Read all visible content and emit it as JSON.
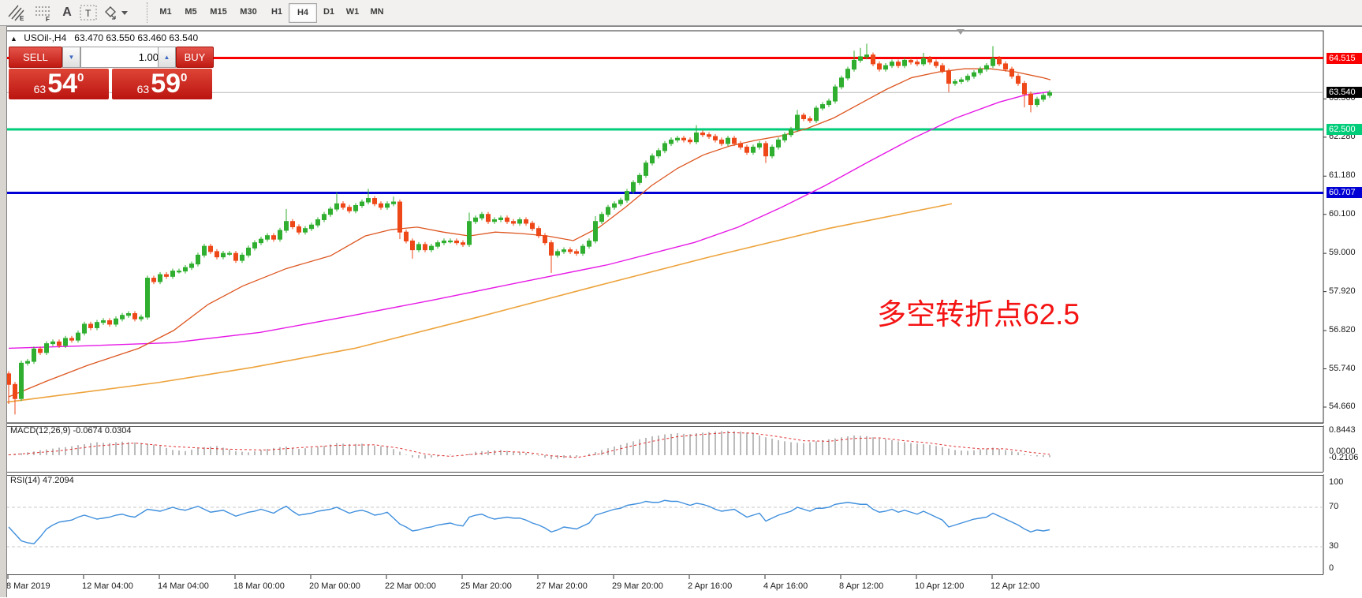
{
  "toolbar": {
    "icons": [
      {
        "name": "equidistant-channel-icon",
        "glyph": "E"
      },
      {
        "name": "fibonacci-icon",
        "glyph": "F"
      },
      {
        "name": "text-a-icon",
        "glyph": "A"
      },
      {
        "name": "text-label-icon",
        "glyph": "T"
      },
      {
        "name": "arrows-icon",
        "glyph": "◆"
      }
    ],
    "timeframes": [
      {
        "label": "M1",
        "active": false
      },
      {
        "label": "M5",
        "active": false
      },
      {
        "label": "M15",
        "active": false
      },
      {
        "label": "M30",
        "active": false
      },
      {
        "label": "H1",
        "active": false
      },
      {
        "label": "H4",
        "active": true
      },
      {
        "label": "D1",
        "active": false
      },
      {
        "label": "W1",
        "active": false
      },
      {
        "label": "MN",
        "active": false
      }
    ]
  },
  "header": {
    "symbol": "USOil-,H4",
    "ohlc": "63.470 63.550 63.460 63.540"
  },
  "one_click": {
    "sell_label": "SELL",
    "buy_label": "BUY",
    "volume": "1.00",
    "sell_price_big": "63",
    "sell_price_main": "54",
    "sell_price_sup": "0",
    "buy_price_big": "63",
    "buy_price_main": "59",
    "buy_price_sup": "0"
  },
  "annotation": {
    "text": "多空转折点62.5",
    "color": "#f41414"
  },
  "price_axis": {
    "ticks": [
      "63.360",
      "62.280",
      "61.180",
      "60.100",
      "59.000",
      "57.920",
      "56.820",
      "55.740",
      "54.660"
    ],
    "badges": [
      {
        "label": "64.515",
        "price": 64.515,
        "bg": "#fa0000"
      },
      {
        "label": "63.540",
        "price": 63.54,
        "bg": "#000000"
      },
      {
        "label": "62.500",
        "price": 62.5,
        "bg": "#00cd7a"
      },
      {
        "label": "60.707",
        "price": 60.707,
        "bg": "#0000d4"
      }
    ]
  },
  "macd_panel": {
    "label": "MACD(12,26,9) -0.0674 0.0304",
    "axis_top": "0.8443",
    "axis_zero": "0.0000",
    "axis_bottom": "-0.2106"
  },
  "rsi_panel": {
    "label": "RSI(14) 47.2094",
    "axis": [
      "100",
      "70",
      "30",
      "0"
    ]
  },
  "time_axis": {
    "labels": [
      "8 Mar 2019",
      "12 Mar 04:00",
      "14 Mar 04:00",
      "18 Mar 00:00",
      "20 Mar 00:00",
      "22 Mar 00:00",
      "25 Mar 20:00",
      "27 Mar 20:00",
      "29 Mar 20:00",
      "2 Apr 16:00",
      "4 Apr 16:00",
      "8 Apr 12:00",
      "10 Apr 12:00",
      "12 Apr 12:00"
    ]
  },
  "colors": {
    "candle_up": "#2fae2f",
    "candle_down": "#ee4718",
    "ma_fast": "#dd5620",
    "ma_medium": "#e619e6",
    "trendline": "#eda33c",
    "hline_red": "#fa0000",
    "hline_green": "#00cd7a",
    "hline_blue": "#0000d4",
    "bid_line": "#b9b9b9",
    "macd_hist": "#bbbbbb",
    "macd_signal": "#e03030",
    "rsi_line": "#3f8fdd",
    "rsi_levels": "#c9c9c9"
  },
  "chart_data": {
    "type": "candlestick",
    "symbol": "USOil-",
    "timeframe": "H4",
    "ohlc_header": {
      "open": 63.47,
      "high": 63.55,
      "low": 63.46,
      "close": 63.54
    },
    "horizontal_lines": [
      {
        "price": 64.515,
        "color": "#fa0000"
      },
      {
        "price": 63.54,
        "color": "#b9b9b9"
      },
      {
        "price": 62.5,
        "color": "#00cd7a"
      },
      {
        "price": 60.707,
        "color": "#0000d4"
      }
    ],
    "closes": [
      55.3,
      54.9,
      55.9,
      55.95,
      56.3,
      56.2,
      56.45,
      56.5,
      56.4,
      56.6,
      56.55,
      56.75,
      57.0,
      56.9,
      57.05,
      57.1,
      57.0,
      57.15,
      57.25,
      57.3,
      57.15,
      57.2,
      58.3,
      58.2,
      58.4,
      58.35,
      58.5,
      58.5,
      58.6,
      58.7,
      58.95,
      59.2,
      59.05,
      58.9,
      59.0,
      59.0,
      58.8,
      58.95,
      59.15,
      59.3,
      59.4,
      59.5,
      59.4,
      59.65,
      59.9,
      59.75,
      59.6,
      59.7,
      59.8,
      59.95,
      60.1,
      60.25,
      60.4,
      60.3,
      60.2,
      60.35,
      60.45,
      60.55,
      60.4,
      60.3,
      60.4,
      60.45,
      59.6,
      59.35,
      59.1,
      59.25,
      59.1,
      59.2,
      59.3,
      59.35,
      59.35,
      59.3,
      59.25,
      59.9,
      60.0,
      60.1,
      59.9,
      59.95,
      60.0,
      59.9,
      59.85,
      59.95,
      59.85,
      59.7,
      59.5,
      59.3,
      58.95,
      59.05,
      59.1,
      59.05,
      59.0,
      59.2,
      59.35,
      59.9,
      60.1,
      60.3,
      60.4,
      60.5,
      60.75,
      61.0,
      61.2,
      61.55,
      61.75,
      61.9,
      62.1,
      62.2,
      62.25,
      62.2,
      62.15,
      62.4,
      62.35,
      62.3,
      62.2,
      62.1,
      62.25,
      62.1,
      62.0,
      61.85,
      62.0,
      62.1,
      61.75,
      62.0,
      62.2,
      62.35,
      62.5,
      62.9,
      62.8,
      62.75,
      63.1,
      63.2,
      63.3,
      63.7,
      63.95,
      64.2,
      64.45,
      64.55,
      64.6,
      64.35,
      64.2,
      64.3,
      64.4,
      64.3,
      64.45,
      64.4,
      64.35,
      64.5,
      64.4,
      64.3,
      64.15,
      63.8,
      63.85,
      63.9,
      64.0,
      64.1,
      64.2,
      64.3,
      64.5,
      64.35,
      64.2,
      64.0,
      63.8,
      63.5,
      63.2,
      63.35,
      63.46,
      63.54
    ],
    "first_open": 55.6,
    "wick_overrides": {
      "0": {
        "l": 54.75
      },
      "1": {
        "l": 54.45
      },
      "44": {
        "h": 60.25
      },
      "52": {
        "h": 60.72
      },
      "57": {
        "h": 60.82
      },
      "61": {
        "h": 60.6
      },
      "62": {
        "l": 59.4
      },
      "64": {
        "l": 58.85
      },
      "73": {
        "h": 60.15
      },
      "86": {
        "l": 58.45
      },
      "93": {
        "h": 60.05
      },
      "109": {
        "h": 62.62
      },
      "120": {
        "l": 61.55
      },
      "125": {
        "h": 63.05
      },
      "134": {
        "h": 64.72
      },
      "135": {
        "h": 64.8
      },
      "136": {
        "h": 64.92
      },
      "145": {
        "h": 64.66
      },
      "149": {
        "l": 63.55
      },
      "156": {
        "h": 64.85
      },
      "161": {
        "l": 63.12
      },
      "162": {
        "l": 62.98
      }
    },
    "ma_fast": [
      [
        11,
        54.95
      ],
      [
        60,
        55.4
      ],
      [
        110,
        55.83
      ],
      [
        176,
        56.32
      ],
      [
        220,
        56.82
      ],
      [
        264,
        57.56
      ],
      [
        308,
        58.08
      ],
      [
        363,
        58.57
      ],
      [
        419,
        58.93
      ],
      [
        463,
        59.49
      ],
      [
        496,
        59.67
      ],
      [
        529,
        59.74
      ],
      [
        562,
        59.6
      ],
      [
        595,
        59.49
      ],
      [
        628,
        59.6
      ],
      [
        661,
        59.56
      ],
      [
        694,
        59.49
      ],
      [
        727,
        59.36
      ],
      [
        760,
        59.74
      ],
      [
        793,
        60.3
      ],
      [
        826,
        60.91
      ],
      [
        859,
        61.4
      ],
      [
        892,
        61.78
      ],
      [
        925,
        62.03
      ],
      [
        958,
        62.19
      ],
      [
        991,
        62.32
      ],
      [
        1024,
        62.53
      ],
      [
        1057,
        62.82
      ],
      [
        1090,
        63.22
      ],
      [
        1124,
        63.63
      ],
      [
        1156,
        63.96
      ],
      [
        1190,
        64.12
      ],
      [
        1223,
        64.21
      ],
      [
        1256,
        64.21
      ],
      [
        1288,
        64.12
      ],
      [
        1322,
        63.96
      ],
      [
        1332,
        63.9
      ]
    ],
    "ma_medium": [
      [
        11,
        56.32
      ],
      [
        110,
        56.39
      ],
      [
        220,
        56.48
      ],
      [
        330,
        56.77
      ],
      [
        441,
        57.22
      ],
      [
        551,
        57.69
      ],
      [
        661,
        58.19
      ],
      [
        771,
        58.68
      ],
      [
        881,
        59.31
      ],
      [
        936,
        59.74
      ],
      [
        991,
        60.3
      ],
      [
        1046,
        60.91
      ],
      [
        1101,
        61.58
      ],
      [
        1156,
        62.23
      ],
      [
        1212,
        62.82
      ],
      [
        1267,
        63.27
      ],
      [
        1300,
        63.47
      ],
      [
        1330,
        63.56
      ]
    ],
    "trendline": [
      [
        9,
        54.8
      ],
      [
        200,
        55.35
      ],
      [
        320,
        55.78
      ],
      [
        450,
        56.32
      ],
      [
        606,
        57.2
      ],
      [
        760,
        58.1
      ],
      [
        900,
        58.9
      ],
      [
        1050,
        59.7
      ],
      [
        1207,
        60.4
      ]
    ],
    "macd_hist": [
      0.02,
      0.05,
      0.07,
      0.1,
      0.13,
      0.17,
      0.2,
      0.23,
      0.26,
      0.28,
      0.31,
      0.35,
      0.38,
      0.42,
      0.45,
      0.43,
      0.42,
      0.45,
      0.47,
      0.45,
      0.44,
      0.42,
      0.4,
      0.36,
      0.32,
      0.25,
      0.18,
      0.16,
      0.14,
      0.19,
      0.24,
      0.28,
      0.3,
      0.32,
      0.26,
      0.2,
      0.14,
      0.12,
      0.1,
      0.14,
      0.18,
      0.22,
      0.25,
      0.28,
      0.3,
      0.26,
      0.22,
      0.24,
      0.26,
      0.29,
      0.32,
      0.37,
      0.42,
      0.4,
      0.38,
      0.39,
      0.4,
      0.36,
      0.33,
      0.31,
      0.3,
      0.21,
      0.12,
      0.02,
      -0.08,
      -0.1,
      -0.12,
      -0.08,
      -0.05,
      -0.01,
      0.02,
      0.0,
      -0.02,
      0.05,
      0.12,
      0.14,
      0.16,
      0.17,
      0.18,
      0.15,
      0.12,
      0.1,
      0.08,
      0.03,
      -0.02,
      -0.08,
      -0.14,
      -0.12,
      -0.1,
      -0.08,
      -0.06,
      0.0,
      0.05,
      0.11,
      0.18,
      0.24,
      0.3,
      0.36,
      0.42,
      0.48,
      0.55,
      0.6,
      0.65,
      0.68,
      0.72,
      0.74,
      0.76,
      0.74,
      0.73,
      0.76,
      0.78,
      0.8,
      0.82,
      0.83,
      0.84,
      0.83,
      0.82,
      0.78,
      0.75,
      0.68,
      0.62,
      0.57,
      0.52,
      0.48,
      0.45,
      0.43,
      0.42,
      0.45,
      0.48,
      0.52,
      0.55,
      0.58,
      0.62,
      0.65,
      0.68,
      0.67,
      0.66,
      0.62,
      0.58,
      0.55,
      0.52,
      0.48,
      0.45,
      0.42,
      0.4,
      0.38,
      0.36,
      0.32,
      0.28,
      0.23,
      0.18,
      0.16,
      0.15,
      0.17,
      0.2,
      0.23,
      0.26,
      0.22,
      0.18,
      0.14,
      0.1,
      0.04,
      -0.02,
      -0.04,
      -0.06,
      -0.0674
    ],
    "macd_signal": [
      [
        0,
        0.01
      ],
      [
        8,
        0.15
      ],
      [
        14,
        0.32
      ],
      [
        20,
        0.42
      ],
      [
        26,
        0.3
      ],
      [
        31,
        0.24
      ],
      [
        36,
        0.2
      ],
      [
        41,
        0.18
      ],
      [
        46,
        0.26
      ],
      [
        52,
        0.34
      ],
      [
        58,
        0.36
      ],
      [
        62,
        0.24
      ],
      [
        66,
        0.04
      ],
      [
        70,
        -0.04
      ],
      [
        74,
        0.04
      ],
      [
        78,
        0.13
      ],
      [
        82,
        0.1
      ],
      [
        86,
        -0.02
      ],
      [
        90,
        -0.08
      ],
      [
        94,
        0.06
      ],
      [
        98,
        0.28
      ],
      [
        102,
        0.48
      ],
      [
        106,
        0.64
      ],
      [
        110,
        0.72
      ],
      [
        114,
        0.78
      ],
      [
        118,
        0.76
      ],
      [
        122,
        0.64
      ],
      [
        126,
        0.5
      ],
      [
        130,
        0.48
      ],
      [
        134,
        0.58
      ],
      [
        138,
        0.6
      ],
      [
        142,
        0.5
      ],
      [
        146,
        0.42
      ],
      [
        150,
        0.3
      ],
      [
        154,
        0.22
      ],
      [
        158,
        0.22
      ],
      [
        162,
        0.1
      ],
      [
        165,
        0.0304
      ]
    ],
    "macd_current": -0.0674,
    "macd_signal_current": 0.0304,
    "rsi_values": [
      50,
      43,
      36,
      34,
      33,
      40,
      48,
      52,
      55,
      56,
      57,
      60,
      62,
      60,
      58,
      59,
      60,
      62,
      63,
      61,
      60,
      64,
      68,
      67,
      66,
      68,
      70,
      68,
      67,
      69,
      71,
      68,
      65,
      66,
      67,
      64,
      61,
      63,
      65,
      66,
      68,
      66,
      64,
      68,
      71,
      66,
      62,
      63,
      64,
      66,
      67,
      68,
      70,
      67,
      64,
      66,
      67,
      65,
      62,
      63,
      65,
      59,
      53,
      50,
      46,
      47,
      49,
      50,
      52,
      53,
      54,
      52,
      51,
      60,
      62,
      63,
      60,
      58,
      59,
      60,
      59,
      59,
      57,
      54,
      52,
      49,
      45,
      47,
      50,
      49,
      48,
      51,
      54,
      62,
      64,
      66,
      68,
      69,
      72,
      73,
      74,
      76,
      75,
      75,
      77,
      76,
      76,
      74,
      72,
      74,
      73,
      71,
      68,
      66,
      67,
      68,
      64,
      60,
      62,
      64,
      56,
      59,
      62,
      64,
      66,
      70,
      68,
      66,
      69,
      69,
      70,
      73,
      74,
      75,
      74,
      73,
      73,
      68,
      65,
      66,
      68,
      65,
      67,
      65,
      63,
      66,
      63,
      60,
      57,
      50,
      52,
      54,
      56,
      58,
      59,
      60,
      64,
      61,
      58,
      55,
      52,
      48,
      45,
      47,
      46,
      47.2
    ],
    "rsi_current": 47.2094,
    "rsi_levels": [
      70,
      30
    ]
  }
}
